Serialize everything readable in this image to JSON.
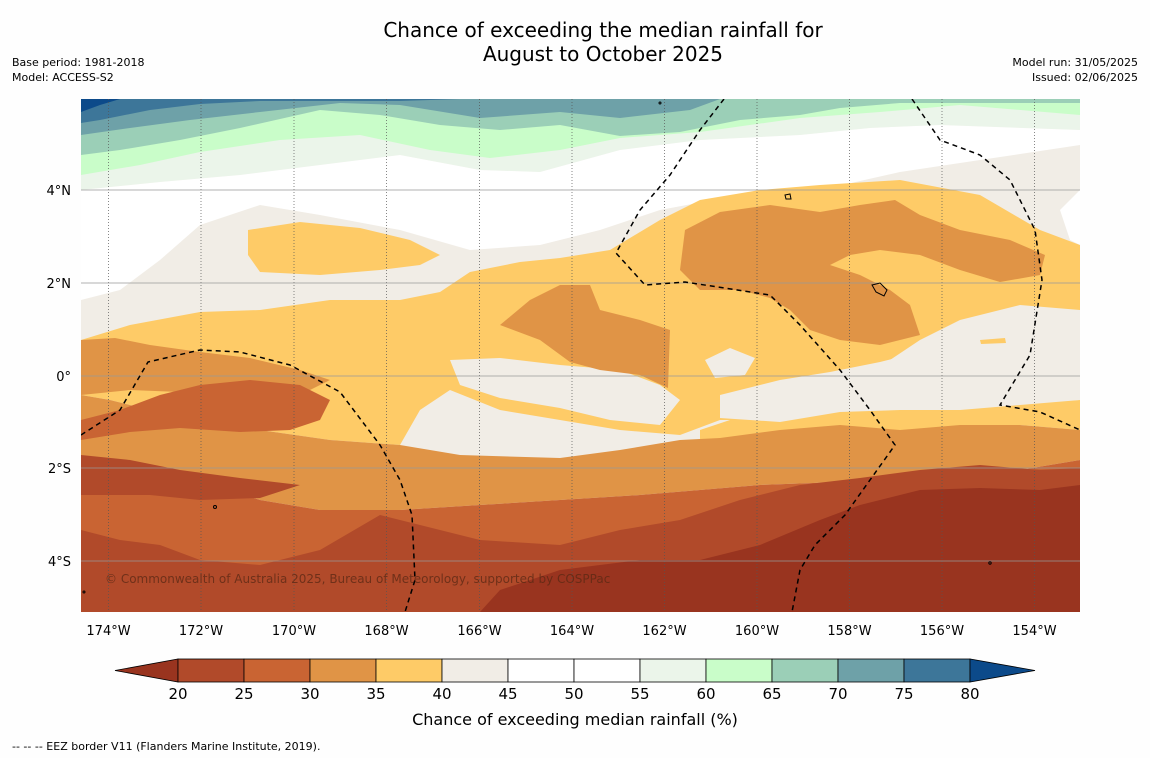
{
  "title_line1": "Chance of exceeding the median rainfall for",
  "title_line2": "August to October 2025",
  "meta_left": {
    "base_period": "Base period: 1981-2018",
    "model": "Model: ACCESS-S2"
  },
  "meta_right": {
    "model_run": "Model run: 31/05/2025",
    "issued": "Issued: 02/06/2025"
  },
  "copyright": "© Commonwealth of Australia 2025, Bureau of Meteorology, supported by COSPPac",
  "lon_labels": [
    "174°W",
    "172°W",
    "170°W",
    "168°W",
    "166°W",
    "164°W",
    "162°W",
    "160°W",
    "158°W",
    "156°W",
    "154°W"
  ],
  "lat_labels": [
    "4°N",
    "2°N",
    "0°",
    "2°S",
    "4°S"
  ],
  "colorbar": {
    "label": "Chance of exceeding median rainfall (%)",
    "ticks": [
      "20",
      "25",
      "30",
      "35",
      "40",
      "45",
      "50",
      "55",
      "60",
      "65",
      "70",
      "75",
      "80"
    ],
    "colors": [
      "#99341f",
      "#b14a2a",
      "#c96433",
      "#e09446",
      "#fecb67",
      "#f1ede6",
      "#ffffff",
      "#ffffff",
      "#ebf5ea",
      "#c9fdc9",
      "#9bcfb7",
      "#6ea1a8",
      "#3d7699",
      "#0c4a8a"
    ]
  },
  "eez_legend": "--  --  -- EEZ border V11 (Flanders Marine Institute, 2019)."
}
